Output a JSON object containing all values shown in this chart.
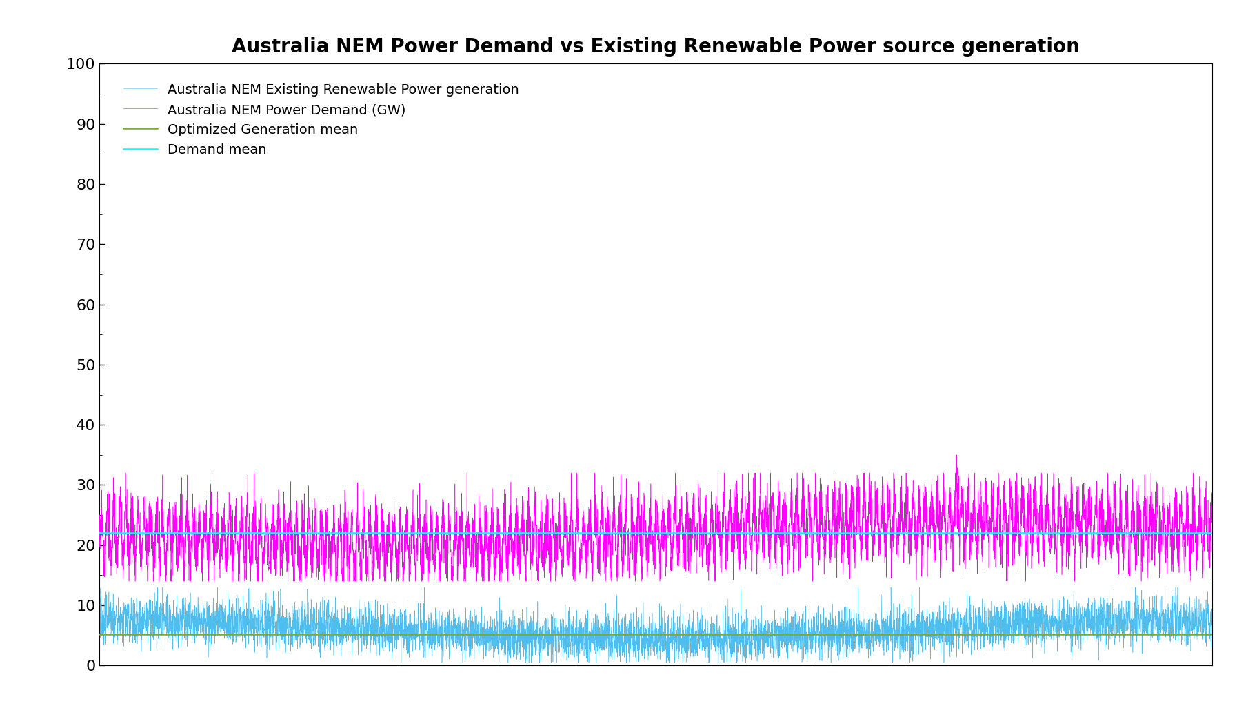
{
  "title": "Australia NEM Power Demand vs Existing Renewable Power source generation",
  "legend_entries": [
    "Australia NEM Existing Renewable Power generation",
    "Australia NEM Power Demand (GW)",
    "Optimized Generation mean",
    "Demand mean"
  ],
  "line_colors": {
    "renewable": "#4DBEEE",
    "demand": "#FF00FF",
    "gen_mean": "#77AC30",
    "demand_mean": "#00FFFF"
  },
  "ylim": [
    0,
    100
  ],
  "yticks": [
    0,
    10,
    20,
    30,
    40,
    50,
    60,
    70,
    80,
    90,
    100
  ],
  "demand_mean_val": 22.0,
  "gen_mean_val": 5.2,
  "n_points": 8760,
  "background_color": "#FFFFFF",
  "title_fontsize": 20,
  "legend_fontsize": 14,
  "tick_fontsize": 16,
  "linewidth_signal": 0.4,
  "linewidth_mean": 1.8
}
